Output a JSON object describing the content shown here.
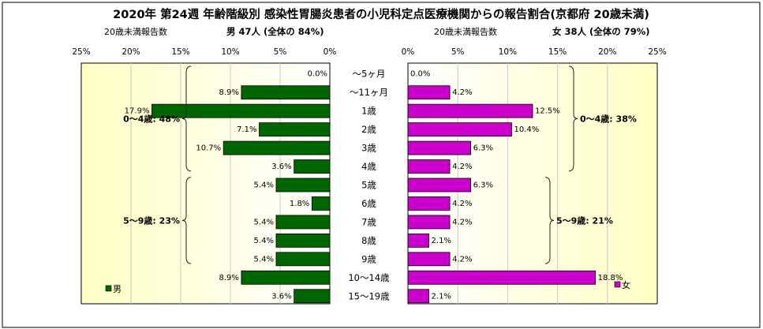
{
  "title": "2020年 第24週 年齢階級別 感染性胃腸炎患者の小児科定点医療機関からの報告割合(京都府 20歳未満)",
  "left_panel": {
    "header_left": "20歳未満報告数",
    "header_right": "男  47人  (全体の   84%)",
    "legend": "男"
  },
  "right_panel": {
    "header_left": "20歳未満報告数",
    "header_right": "女  38人  (全体の   79%)",
    "legend": "女"
  },
  "colors": {
    "male": "#006600",
    "female": "#cc00cc",
    "plot_bg": "#ffffcc"
  },
  "chart_data": {
    "type": "bar",
    "orientation": "horizontal-butterfly",
    "categories": [
      "~5ヶ月",
      "~11ヶ月",
      "1歳",
      "2歳",
      "3歳",
      "4歳",
      "5歳",
      "6歳",
      "7歳",
      "8歳",
      "9歳",
      "10~14歳",
      "15~19歳"
    ],
    "series": [
      {
        "name": "男",
        "values": [
          0.0,
          8.9,
          17.9,
          7.1,
          10.7,
          3.6,
          5.4,
          1.8,
          5.4,
          5.4,
          5.4,
          8.9,
          3.6
        ]
      },
      {
        "name": "女",
        "values": [
          0.0,
          4.2,
          12.5,
          10.4,
          6.3,
          4.2,
          6.3,
          4.2,
          4.2,
          2.1,
          4.2,
          18.8,
          2.1
        ]
      }
    ],
    "data_labels_male": [
      "0.0%",
      "8.9%",
      "17.9%",
      "7.1%",
      "10.7%",
      "3.6%",
      "5.4%",
      "1.8%",
      "5.4%",
      "5.4%",
      "5.4%",
      "8.9%",
      "3.6%"
    ],
    "data_labels_female": [
      "0.0%",
      "4.2%",
      "12.5%",
      "10.4%",
      "6.3%",
      "4.2%",
      "6.3%",
      "4.2%",
      "4.2%",
      "2.1%",
      "4.2%",
      "18.8%",
      "2.1%"
    ],
    "category_labels": [
      "～5ヶ月",
      "～11ヶ月",
      "1歳",
      "2歳",
      "3歳",
      "4歳",
      "5歳",
      "6歳",
      "7歳",
      "8歳",
      "9歳",
      "10～14歳",
      "15～19歳"
    ],
    "xlim": [
      0,
      25
    ],
    "xticks_left": [
      "25%",
      "20%",
      "15%",
      "10%",
      "5%",
      "0%"
    ],
    "xticks_right": [
      "0%",
      "5%",
      "10%",
      "15%",
      "20%",
      "25%"
    ],
    "annotations": {
      "male_0_4": "0～4歳: 48%",
      "male_5_9": "5～9歳: 23%",
      "female_0_4": "0～4歳: 38%",
      "female_5_9": "5～9歳: 21%"
    }
  }
}
